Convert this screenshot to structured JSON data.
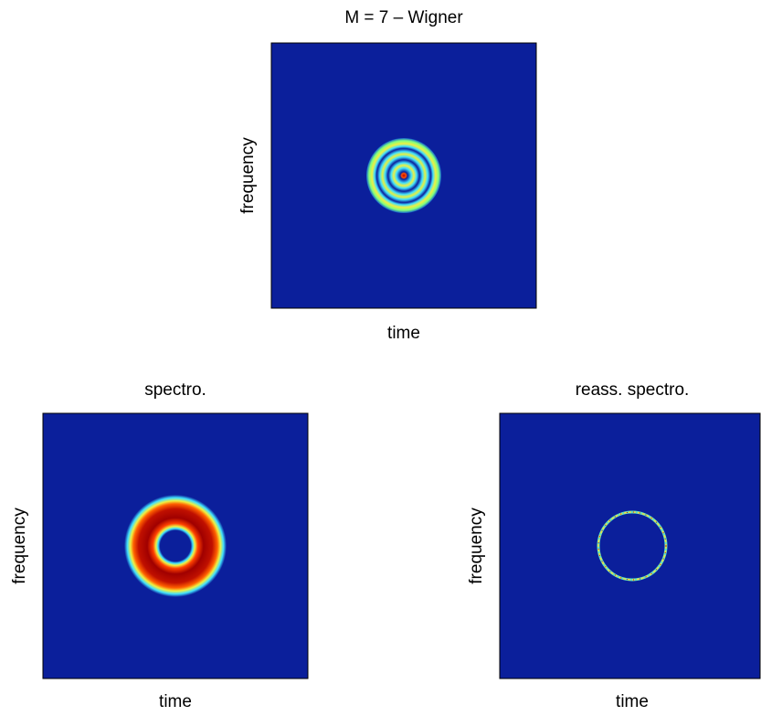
{
  "chart_data": [
    {
      "type": "image",
      "title": "M = 7 – Wigner",
      "xlabel": "time",
      "ylabel": "frequency"
    },
    {
      "type": "image",
      "title": "spectro.",
      "xlabel": "time",
      "ylabel": "frequency"
    },
    {
      "type": "image",
      "title": "reass. spectro.",
      "xlabel": "time",
      "ylabel": "frequency"
    }
  ]
}
